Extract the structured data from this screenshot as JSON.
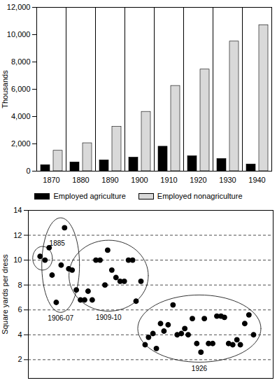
{
  "chart_data": [
    {
      "type": "bar",
      "categories": [
        "1870",
        "1880",
        "1890",
        "1900",
        "1910",
        "1920",
        "1930",
        "1940"
      ],
      "series": [
        {
          "name": "Employed agriculture",
          "color": "#000000",
          "values": [
            450,
            650,
            800,
            1000,
            1800,
            1100,
            900,
            500
          ]
        },
        {
          "name": "Employed nonagriculture",
          "color": "#d9d9d9",
          "values": [
            1500,
            2050,
            3250,
            4350,
            6250,
            7450,
            9500,
            10700
          ]
        }
      ],
      "ylabel": "Thousands",
      "ylim": [
        0,
        12000
      ],
      "yticks": [
        0,
        {
          "value": 2000,
          "label": "2,000"
        },
        {
          "value": 4000,
          "label": "4,000"
        },
        {
          "value": 6000,
          "label": "6,000"
        },
        {
          "value": 8000,
          "label": "8,000"
        },
        {
          "value": 10000,
          "label": "10,000"
        },
        {
          "value": 12000,
          "label": "12,000"
        }
      ],
      "grid": false,
      "legend": "bottom"
    },
    {
      "type": "scatter",
      "ylabel": "Square yards per dress",
      "xlim": [
        0,
        100
      ],
      "ylim": [
        0.5,
        14
      ],
      "yticks": [
        2,
        4,
        6,
        8,
        10,
        12,
        14
      ],
      "grid": true,
      "tick_labels": "y",
      "marker": "circle",
      "color": "#000000",
      "series": [
        {
          "name": "1885",
          "x": [
            4.8,
            6.8
          ],
          "values": [
            10.3,
            10.0
          ]
        },
        {
          "name": "1906-07",
          "x": [
            8.5,
            9.7,
            11.4,
            13.4,
            14.8,
            16.5,
            17.9
          ],
          "values": [
            11.0,
            8.8,
            6.6,
            9.6,
            12.6,
            9.3,
            9.2
          ]
        },
        {
          "name": "1909-10",
          "x": [
            19.6,
            21.3,
            23.0,
            24.4,
            26.1,
            27.6,
            29.3,
            31.3,
            32.4,
            34.1,
            35.8,
            37.5,
            39.2,
            40.9,
            42.6,
            44.0,
            46.0
          ],
          "values": [
            7.6,
            6.8,
            6.8,
            7.5,
            6.8,
            10.0,
            10.0,
            8.0,
            10.8,
            9.2,
            8.6,
            8.3,
            8.3,
            10.0,
            10.0,
            6.7,
            8.3
          ]
        },
        {
          "name": "1926",
          "x": [
            47.7,
            49.1,
            50.9,
            52.3,
            54.0,
            55.4,
            57.1,
            59.1,
            60.8,
            62.5,
            63.9,
            65.3,
            67.0,
            68.8,
            70.5,
            71.9,
            73.6,
            75.3,
            77.0,
            78.7,
            80.1,
            81.8,
            83.5,
            85.2,
            86.6,
            88.4,
            90.1,
            92.0
          ],
          "values": [
            3.2,
            3.8,
            4.1,
            2.9,
            4.9,
            4.3,
            4.8,
            6.4,
            4.0,
            4.1,
            4.5,
            4.0,
            5.3,
            3.3,
            2.6,
            5.3,
            3.3,
            3.3,
            5.5,
            5.5,
            5.4,
            3.3,
            3.2,
            3.6,
            3.2,
            4.9,
            5.6,
            4.0
          ]
        }
      ]
    }
  ]
}
